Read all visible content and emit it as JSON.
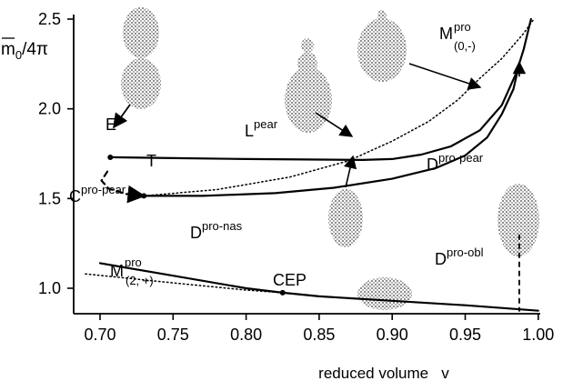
{
  "chart_data": {
    "type": "line",
    "xlabel": "reduced volume   v",
    "ylabel": "m̅0/4π",
    "xlim": [
      0.69,
      1.0
    ],
    "ylim": [
      0.83,
      2.5
    ],
    "xticks": [
      "0.70",
      "0.75",
      "0.80",
      "0.85",
      "0.90",
      "0.95",
      "1.00"
    ],
    "yticks": [
      "1.0",
      "1.5",
      "2.0",
      "2.5"
    ],
    "grid": false,
    "series": [
      {
        "name": "L^pear",
        "style": "solid",
        "points": [
          [
            0.707,
            1.73
          ],
          [
            0.75,
            1.725
          ],
          [
            0.8,
            1.72
          ],
          [
            0.85,
            1.717
          ],
          [
            0.88,
            1.715
          ],
          [
            0.9,
            1.72
          ],
          [
            0.92,
            1.745
          ],
          [
            0.94,
            1.79
          ],
          [
            0.96,
            1.88
          ],
          [
            0.975,
            2.02
          ],
          [
            0.985,
            2.2
          ],
          [
            0.99,
            2.33
          ],
          [
            0.995,
            2.5
          ]
        ]
      },
      {
        "name": "D^pro-pear",
        "style": "solid",
        "points": [
          [
            0.73,
            1.515
          ],
          [
            0.77,
            1.515
          ],
          [
            0.82,
            1.53
          ],
          [
            0.86,
            1.56
          ],
          [
            0.9,
            1.61
          ],
          [
            0.93,
            1.67
          ],
          [
            0.95,
            1.74
          ],
          [
            0.965,
            1.84
          ],
          [
            0.975,
            1.97
          ],
          [
            0.983,
            2.11
          ],
          [
            0.987,
            2.25
          ]
        ]
      },
      {
        "name": "C^pro-pear",
        "style": "dashed",
        "points": [
          [
            0.705,
            1.65
          ],
          [
            0.701,
            1.6
          ],
          [
            0.706,
            1.555
          ],
          [
            0.718,
            1.525
          ],
          [
            0.73,
            1.515
          ]
        ]
      },
      {
        "name": "M^pro_(0,-)",
        "style": "dotted",
        "points": [
          [
            0.73,
            1.515
          ],
          [
            0.78,
            1.55
          ],
          [
            0.83,
            1.62
          ],
          [
            0.87,
            1.71
          ],
          [
            0.9,
            1.82
          ],
          [
            0.925,
            1.93
          ],
          [
            0.945,
            2.05
          ],
          [
            0.96,
            2.17
          ],
          [
            0.975,
            2.28
          ],
          [
            0.99,
            2.42
          ],
          [
            0.997,
            2.5
          ]
        ]
      },
      {
        "name": "D^pro-nas",
        "style": "solid",
        "points": [
          [
            0.7,
            1.14
          ],
          [
            0.75,
            1.07
          ],
          [
            0.8,
            1.0
          ],
          [
            0.825,
            0.975
          ],
          [
            0.85,
            0.955
          ],
          [
            0.9,
            0.93
          ],
          [
            0.95,
            0.905
          ],
          [
            1.0,
            0.875
          ]
        ]
      },
      {
        "name": "M^pro_(2,+)",
        "style": "dotted",
        "points": [
          [
            0.69,
            1.08
          ],
          [
            0.75,
            1.03
          ],
          [
            0.8,
            0.99
          ],
          [
            0.825,
            0.975
          ]
        ]
      }
    ],
    "points": [
      {
        "label": "E",
        "x": 0.707,
        "y": 1.73
      },
      {
        "label": "T",
        "x": 0.73,
        "y": 1.515
      },
      {
        "label": "CEP",
        "x": 0.825,
        "y": 0.975
      }
    ],
    "vertical_dashed_line": {
      "x": 0.987,
      "y_from": 0.87,
      "y_to": 1.3
    },
    "annotations": [
      {
        "base": "E",
        "sup": "",
        "sub": ""
      },
      {
        "base": "T",
        "sup": "",
        "sub": ""
      },
      {
        "base": "L",
        "sup": "pear",
        "sub": ""
      },
      {
        "base": "D",
        "sup": "pro-pear",
        "sub": ""
      },
      {
        "base": "C",
        "sup": "pro-pear",
        "sub": ""
      },
      {
        "base": "M",
        "sup": "pro",
        "sub": "(0,-)"
      },
      {
        "base": "D",
        "sup": "pro-nas",
        "sub": ""
      },
      {
        "base": "D",
        "sup": "pro-obl",
        "sub": ""
      },
      {
        "base": "M",
        "sup": "pro",
        "sub": "(2, +)"
      },
      {
        "base": "CEP",
        "sup": "",
        "sub": ""
      }
    ],
    "shapes": [
      "budded-vesicle",
      "pear-vesicle-with-bud",
      "pear-vesicle",
      "oblong-vesicle",
      "prolate-vesicle",
      "flattened-vesicle"
    ]
  }
}
